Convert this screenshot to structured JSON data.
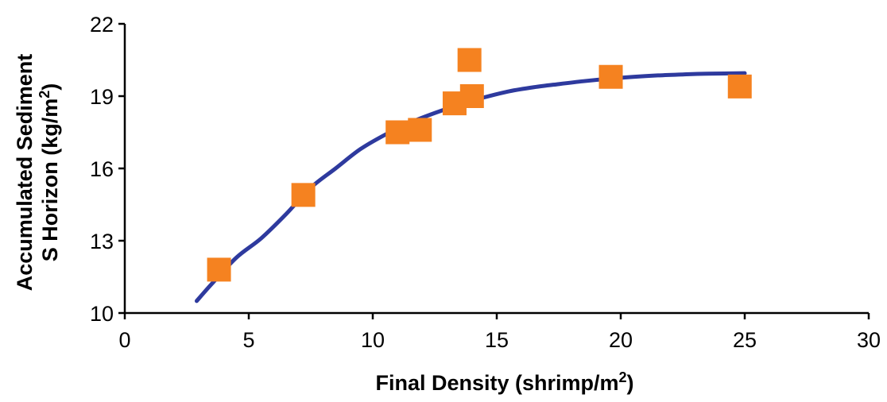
{
  "chart_data": {
    "type": "scatter",
    "xlabel": "Final Density (shrimp/m",
    "xlabel_sup": "2",
    "xlabel_suffix": ")",
    "ylabel_line1": "Accumulated Sediment",
    "ylabel_line2": "S Horizon (kg/m",
    "ylabel_sup": "2",
    "ylabel_suffix": ")",
    "xlim": [
      0,
      30
    ],
    "ylim": [
      10,
      22
    ],
    "x_ticks": [
      "0",
      "5",
      "10",
      "15",
      "20",
      "25",
      "30"
    ],
    "y_ticks": [
      "10",
      "13",
      "16",
      "19",
      "22"
    ],
    "grid": false,
    "colors": {
      "points": "#f58220",
      "fit": "#2e3a9e",
      "axis": "#000000"
    },
    "series": [
      {
        "kind": "points",
        "marker": "square",
        "x": [
          3.8,
          7.2,
          11.0,
          11.9,
          13.3,
          13.9,
          14.0,
          19.6,
          24.8
        ],
        "y": [
          11.8,
          14.9,
          17.5,
          17.6,
          18.7,
          20.5,
          19.0,
          19.8,
          19.4
        ]
      },
      {
        "kind": "fit-line",
        "x": [
          2.9,
          3.5,
          4.5,
          5.5,
          6.5,
          7.5,
          8.5,
          9.5,
          10.5,
          11.5,
          12.5,
          13.5,
          14.5,
          15.5,
          16.5,
          17.5,
          18.5,
          19.5,
          20.5,
          21.5,
          22.5,
          23.5,
          25.0
        ],
        "y": [
          10.5,
          11.2,
          12.3,
          13.1,
          14.1,
          15.2,
          16.0,
          16.8,
          17.4,
          17.9,
          18.3,
          18.65,
          18.95,
          19.2,
          19.37,
          19.5,
          19.62,
          19.72,
          19.8,
          19.86,
          19.9,
          19.93,
          19.95
        ]
      }
    ]
  }
}
